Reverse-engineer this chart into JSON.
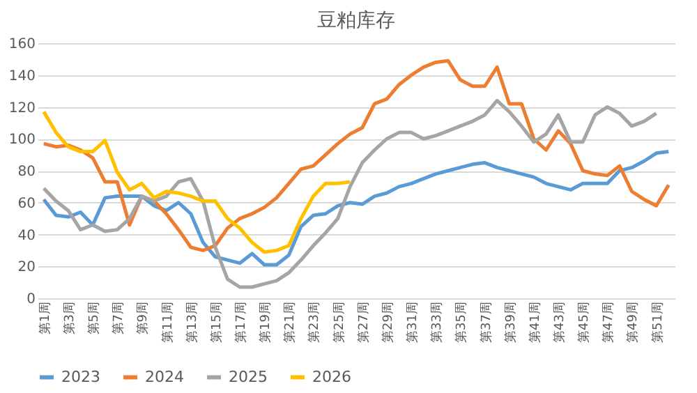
{
  "chart_data": {
    "type": "line",
    "title": "豆粕库存",
    "categories": [
      "第1周",
      null,
      "第3周",
      null,
      "第5周",
      null,
      "第7周",
      null,
      "第9周",
      null,
      "第11周",
      null,
      "第13周",
      null,
      "第15周",
      null,
      "第17周",
      null,
      "第19周",
      null,
      "第21周",
      null,
      "第23周",
      null,
      "第25周",
      null,
      "第27周",
      null,
      "第29周",
      null,
      "第31周",
      null,
      "第33周",
      null,
      "第35周",
      null,
      "第37周",
      null,
      "第39周",
      null,
      "第41周",
      null,
      "第43周",
      null,
      "第45周",
      null,
      "第47周",
      null,
      "第49周",
      null,
      "第51周",
      null
    ],
    "series": [
      {
        "name": "2023",
        "color": "#5b9bd5",
        "values": [
          62,
          52,
          51,
          54,
          46,
          63,
          64,
          64,
          64,
          58,
          55,
          60,
          53,
          35,
          26,
          24,
          22,
          28,
          21,
          21,
          27,
          45,
          52,
          53,
          58,
          60,
          59,
          64,
          66,
          70,
          72,
          75,
          78,
          80,
          82,
          84,
          85,
          82,
          80,
          78,
          76,
          72,
          70,
          68,
          72,
          72,
          72,
          80,
          82,
          86,
          91,
          92
        ]
      },
      {
        "name": "2024",
        "color": "#ed7d31",
        "values": [
          97,
          95,
          96,
          93,
          88,
          73,
          73,
          46,
          64,
          61,
          53,
          43,
          32,
          30,
          33,
          44,
          50,
          53,
          57,
          63,
          72,
          81,
          83,
          90,
          97,
          103,
          107,
          122,
          125,
          134,
          140,
          145,
          148,
          149,
          137,
          133,
          133,
          145,
          122,
          122,
          100,
          93,
          105,
          97,
          80,
          78,
          77,
          83,
          67,
          62,
          58,
          71
        ]
      },
      {
        "name": "2025",
        "color": "#a5a5a5",
        "values": [
          69,
          61,
          55,
          43,
          46,
          42,
          43,
          50,
          64,
          61,
          64,
          73,
          75,
          61,
          32,
          12,
          7,
          7,
          9,
          11,
          16,
          24,
          33,
          41,
          50,
          70,
          85,
          93,
          100,
          104,
          104,
          100,
          102,
          105,
          108,
          111,
          115,
          124,
          117,
          108,
          98,
          103,
          115,
          98,
          98,
          115,
          120,
          116,
          108,
          111,
          116,
          null
        ]
      },
      {
        "name": "2026",
        "color": "#ffc000",
        "values": [
          117,
          104,
          95,
          92,
          92,
          99,
          79,
          68,
          72,
          63,
          67,
          66,
          64,
          61,
          61,
          50,
          44,
          35,
          29,
          30,
          33,
          50,
          64,
          72,
          72,
          73,
          null,
          null,
          null,
          null,
          null,
          null,
          null,
          null,
          null,
          null,
          null,
          null,
          null,
          null,
          null,
          null,
          null,
          null,
          null,
          null,
          null,
          null,
          null,
          null,
          null,
          null
        ]
      }
    ],
    "ylim": [
      0,
      160
    ],
    "yticks": [
      0,
      20,
      40,
      60,
      80,
      100,
      120,
      140,
      160
    ],
    "grid": "y",
    "legend": "bottom"
  }
}
